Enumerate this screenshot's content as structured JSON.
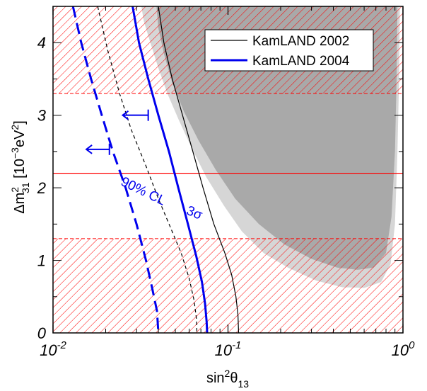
{
  "chart_data": {
    "type": "line",
    "xscale": "log",
    "xlim": [
      0.01,
      1
    ],
    "ylim": [
      0,
      4.5
    ],
    "grid": false,
    "legend_position": "top-right",
    "xlabel": {
      "base": "sin",
      "sup": "2",
      "sym": "θ",
      "sub": "13"
    },
    "ylabel": {
      "base": "Δm",
      "sup": "2",
      "sub": "31",
      "unit": " [10",
      "unit_sup": "−3",
      "unit_tail": "eV",
      "unit_sup2": "2",
      "close": "]"
    },
    "x_ticks": [
      {
        "value": 0.01,
        "base": "10",
        "exp": "-2"
      },
      {
        "value": 0.1,
        "base": "10",
        "exp": "-1"
      },
      {
        "value": 1,
        "base": "10",
        "exp": "0"
      }
    ],
    "y_ticks": [
      {
        "value": 0,
        "label": "0"
      },
      {
        "value": 1,
        "label": "1"
      },
      {
        "value": 2,
        "label": "2"
      },
      {
        "value": 3,
        "label": "3"
      },
      {
        "value": 4,
        "label": "4"
      }
    ],
    "excluded_bands": [
      [
        3.3,
        4.5
      ],
      [
        0,
        1.3
      ]
    ],
    "best_fit_y": 2.2,
    "regions": [
      {
        "shade": "#d6d6d6",
        "points": [
          [
            0.032,
            4.5
          ],
          [
            0.033,
            4.3
          ],
          [
            0.036,
            4.0
          ],
          [
            0.04,
            3.65
          ],
          [
            0.045,
            3.3
          ],
          [
            0.052,
            2.95
          ],
          [
            0.062,
            2.55
          ],
          [
            0.075,
            2.15
          ],
          [
            0.095,
            1.75
          ],
          [
            0.12,
            1.4
          ],
          [
            0.16,
            1.1
          ],
          [
            0.22,
            0.9
          ],
          [
            0.32,
            0.72
          ],
          [
            0.45,
            0.63
          ],
          [
            0.6,
            0.62
          ],
          [
            0.75,
            0.7
          ],
          [
            0.85,
            0.95
          ],
          [
            0.9,
            1.5
          ],
          [
            0.93,
            2.5
          ],
          [
            0.95,
            3.5
          ],
          [
            0.96,
            4.5
          ]
        ]
      },
      {
        "shade": "#a9a9a9",
        "points": [
          [
            0.039,
            4.5
          ],
          [
            0.04,
            4.2
          ],
          [
            0.043,
            3.85
          ],
          [
            0.048,
            3.45
          ],
          [
            0.056,
            3.05
          ],
          [
            0.068,
            2.65
          ],
          [
            0.085,
            2.25
          ],
          [
            0.11,
            1.85
          ],
          [
            0.15,
            1.5
          ],
          [
            0.21,
            1.22
          ],
          [
            0.3,
            1.02
          ],
          [
            0.42,
            0.9
          ],
          [
            0.55,
            0.87
          ],
          [
            0.68,
            0.9
          ],
          [
            0.8,
            1.1
          ],
          [
            0.86,
            1.6
          ],
          [
            0.9,
            2.5
          ],
          [
            0.92,
            3.5
          ],
          [
            0.93,
            4.5
          ]
        ]
      }
    ],
    "series": [
      {
        "name": "KamLAND 2002",
        "color": "#000000",
        "style": "solid",
        "points": [
          [
            0.04,
            4.5
          ],
          [
            0.043,
            4.0
          ],
          [
            0.048,
            3.5
          ],
          [
            0.055,
            3.0
          ],
          [
            0.063,
            2.5
          ],
          [
            0.072,
            2.0
          ],
          [
            0.083,
            1.5
          ],
          [
            0.096,
            1.1
          ],
          [
            0.105,
            0.8
          ],
          [
            0.111,
            0.5
          ],
          [
            0.114,
            0.25
          ],
          [
            0.115,
            0
          ]
        ]
      },
      {
        "name": "KamLAND 2004",
        "color": "#0000ee",
        "style": "solid",
        "points": [
          [
            0.0285,
            4.5
          ],
          [
            0.031,
            4.0
          ],
          [
            0.035,
            3.5
          ],
          [
            0.04,
            3.0
          ],
          [
            0.046,
            2.5
          ],
          [
            0.052,
            2.0
          ],
          [
            0.059,
            1.5
          ],
          [
            0.066,
            1.05
          ],
          [
            0.071,
            0.7
          ],
          [
            0.074,
            0.4
          ],
          [
            0.0755,
            0.15
          ],
          [
            0.076,
            0
          ]
        ]
      },
      {
        "name": "",
        "color": "#000000",
        "style": "dashed",
        "points": [
          [
            0.018,
            4.5
          ],
          [
            0.0205,
            3.9
          ],
          [
            0.024,
            3.3
          ],
          [
            0.028,
            2.8
          ],
          [
            0.034,
            2.3
          ],
          [
            0.04,
            1.85
          ],
          [
            0.047,
            1.45
          ],
          [
            0.054,
            1.1
          ],
          [
            0.06,
            0.75
          ],
          [
            0.064,
            0.45
          ],
          [
            0.066,
            0.2
          ],
          [
            0.0665,
            0
          ]
        ]
      },
      {
        "name": "",
        "color": "#0000ee",
        "style": "dashed",
        "points": [
          [
            0.013,
            4.5
          ],
          [
            0.0145,
            4.0
          ],
          [
            0.0165,
            3.5
          ],
          [
            0.019,
            3.0
          ],
          [
            0.022,
            2.5
          ],
          [
            0.026,
            2.0
          ],
          [
            0.03,
            1.5
          ],
          [
            0.034,
            1.0
          ],
          [
            0.037,
            0.6
          ],
          [
            0.0393,
            0.3
          ],
          [
            0.04,
            0
          ]
        ]
      }
    ],
    "arrows": [
      {
        "from": [
          0.035,
          3.0
        ],
        "to": [
          0.025,
          3.0
        ]
      },
      {
        "from": [
          0.021,
          2.53
        ],
        "to": [
          0.0155,
          2.53
        ]
      }
    ],
    "annotations": [
      {
        "text": "3σ",
        "x": 0.063,
        "y": 1.6,
        "angle": -68
      },
      {
        "text": "90% CL",
        "x": 0.032,
        "y": 1.9,
        "angle": -64
      }
    ]
  }
}
